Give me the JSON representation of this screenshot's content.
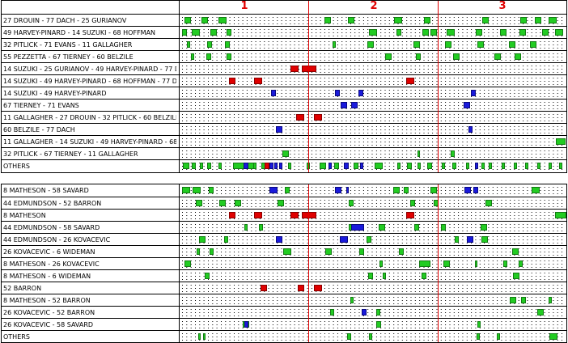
{
  "colors": {
    "green": "#22cc22",
    "red": "#e00000",
    "blue": "#1a1adc",
    "period_line": "#e00000"
  },
  "periods": [
    "1",
    "2",
    "3"
  ],
  "top_panel": {
    "rows": [
      {
        "label": "27 DROUIN - 77 DACH - 25 GURIANOV"
      },
      {
        "label": "49 HARVEY-PINARD - 14 SUZUKI - 68 HOFFMAN"
      },
      {
        "label": "32 PITLICK - 71 EVANS - 11 GALLAGHER"
      },
      {
        "label": "55 PEZZETTA - 67 TIERNEY - 60 BELZILE"
      },
      {
        "label": "14 SUZUKI - 25 GURIANOV - 49 HARVEY-PINARD - 77 D"
      },
      {
        "label": "14 SUZUKI - 49 HARVEY-PINARD - 68 HOFFMAN - 77 DA"
      },
      {
        "label": "14 SUZUKI - 49 HARVEY-PINARD"
      },
      {
        "label": "67 TIERNEY - 71 EVANS"
      },
      {
        "label": "11 GALLAGHER - 27 DROUIN - 32 PITLICK - 60 BELZILE"
      },
      {
        "label": "60 BELZILE - 77 DACH"
      },
      {
        "label": "11 GALLAGHER - 14 SUZUKI - 49 HARVEY-PINARD - 68"
      },
      {
        "label": "32 PITLICK - 67 TIERNEY - 11 GALLAGHER"
      },
      {
        "label": "OTHERS"
      }
    ]
  },
  "bottom_panel": {
    "rows": [
      {
        "label": "8 MATHESON - 58 SAVARD"
      },
      {
        "label": "44 EDMUNDSON - 52 BARRON"
      },
      {
        "label": "8 MATHESON"
      },
      {
        "label": "44 EDMUNDSON - 58 SAVARD"
      },
      {
        "label": "44 EDMUNDSON - 26 KOVACEVIC"
      },
      {
        "label": "26 KOVACEVIC - 6 WIDEMAN"
      },
      {
        "label": "8 MATHESON - 26 KOVACEVIC"
      },
      {
        "label": "8 MATHESON - 6 WIDEMAN"
      },
      {
        "label": "52 BARRON"
      },
      {
        "label": "8 MATHESON - 52 BARRON"
      },
      {
        "label": "26 KOVACEVIC - 52 BARRON"
      },
      {
        "label": "26 KOVACEVIC - 58 SAVARD"
      },
      {
        "label": "OTHERS"
      }
    ]
  }
}
